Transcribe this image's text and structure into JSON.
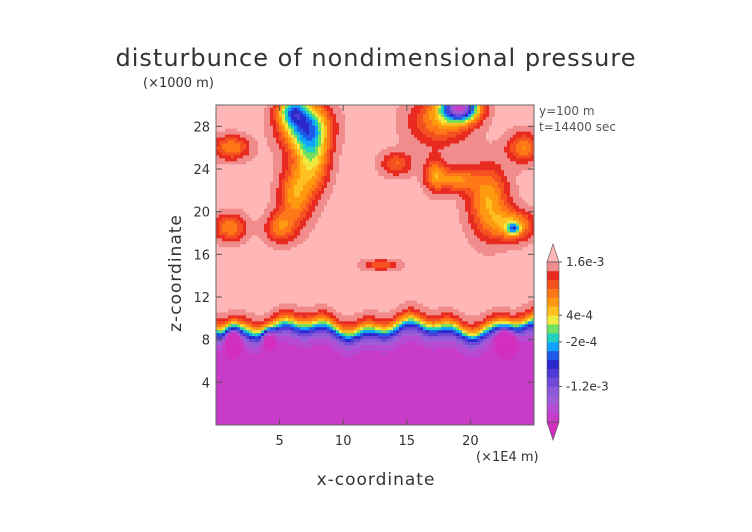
{
  "title": "disturbunce of nondimensional pressure",
  "info": {
    "y_label": "y=100 m",
    "t_label": "t=14400 sec"
  },
  "chart_data": {
    "type": "heatmap",
    "title": "disturbunce of nondimensional pressure",
    "xlabel": "x-coordinate",
    "ylabel": "z-coordinate",
    "x_unit": "(×1E4 m)",
    "z_unit": "(×1000 m)",
    "xlim": [
      0,
      25
    ],
    "ylim": [
      0,
      30
    ],
    "x_ticks": [
      5,
      10,
      15,
      20
    ],
    "y_ticks": [
      4,
      8,
      12,
      16,
      20,
      24,
      28
    ],
    "colorbar": {
      "labels": [
        {
          "value": 0.0016,
          "text": "1.6e-3"
        },
        {
          "value": 0.0004,
          "text": "4e-4"
        },
        {
          "value": -0.0002,
          "text": "-2e-4"
        },
        {
          "value": -0.0012,
          "text": "-1.2e-3"
        }
      ],
      "levels": [
        -0.002,
        -0.0018,
        -0.0016,
        -0.0014,
        -0.0012,
        -0.001,
        -0.0008,
        -0.0006,
        -0.0004,
        -0.0002,
        0,
        0.0002,
        0.0004,
        0.0006,
        0.0008,
        0.001,
        0.0012,
        0.0014,
        0.0016
      ],
      "colors": [
        "#d22fbe",
        "#c83ac8",
        "#b64ad2",
        "#a05ad8",
        "#8a5ad8",
        "#6f4ad8",
        "#4f3ad4",
        "#2c28d0",
        "#1e5ae8",
        "#10a0ff",
        "#20d0c0",
        "#70e060",
        "#f0ea40",
        "#ffc020",
        "#ff9a10",
        "#ff7818",
        "#f45020",
        "#e82a20",
        "#f08c8c",
        "#ffb6b6"
      ]
    },
    "layers": {
      "upper_background": 0.0017,
      "lower_background": -0.0019,
      "transition_z": 9,
      "transition_width": 1.2
    },
    "anomalies": [
      {
        "x": 7,
        "z": 28,
        "sx": 1.3,
        "sz": 1.6,
        "amp": -0.0018
      },
      {
        "x": 6,
        "z": 29.5,
        "sx": 0.8,
        "sz": 1.0,
        "amp": -0.0014
      },
      {
        "x": 7.6,
        "z": 25,
        "sx": 0.9,
        "sz": 2.2,
        "amp": -0.0012
      },
      {
        "x": 6.2,
        "z": 21.5,
        "sx": 0.9,
        "sz": 2.0,
        "amp": -0.001
      },
      {
        "x": 5,
        "z": 18.5,
        "sx": 0.8,
        "sz": 1.0,
        "amp": -0.0008
      },
      {
        "x": 1.2,
        "z": 26,
        "sx": 1.0,
        "sz": 0.8,
        "amp": -0.0009
      },
      {
        "x": 1.1,
        "z": 18.5,
        "sx": 0.9,
        "sz": 0.9,
        "amp": -0.0009
      },
      {
        "x": 13,
        "z": 15,
        "sx": 1.0,
        "sz": 0.35,
        "amp": -0.0007
      },
      {
        "x": 17.6,
        "z": 28.5,
        "sx": 1.7,
        "sz": 1.6,
        "amp": -0.0009
      },
      {
        "x": 19.2,
        "z": 29.8,
        "sx": 1.0,
        "sz": 0.9,
        "amp": -0.0032
      },
      {
        "x": 14.2,
        "z": 24.5,
        "sx": 0.9,
        "sz": 0.8,
        "amp": -0.0007
      },
      {
        "x": 17.2,
        "z": 23.5,
        "sx": 0.6,
        "sz": 1.1,
        "amp": -0.0009
      },
      {
        "x": 18.9,
        "z": 23,
        "sx": 1.0,
        "sz": 0.8,
        "amp": -0.0009
      },
      {
        "x": 21.4,
        "z": 21,
        "sx": 1.1,
        "sz": 2.3,
        "amp": -0.0011
      },
      {
        "x": 23.4,
        "z": 18.7,
        "sx": 1.1,
        "sz": 1.0,
        "amp": -0.0011
      },
      {
        "x": 23.4,
        "z": 18.4,
        "sx": 0.35,
        "sz": 0.35,
        "amp": -0.0012
      },
      {
        "x": 24.2,
        "z": 26,
        "sx": 0.9,
        "sz": 1.0,
        "amp": -0.0009
      },
      {
        "x": 1.3,
        "z": 8.2,
        "sx": 0.45,
        "sz": 0.9,
        "amp": -0.0017
      },
      {
        "x": 4.1,
        "z": 8.2,
        "sx": 0.4,
        "sz": 0.7,
        "amp": -0.0013
      },
      {
        "x": 22.8,
        "z": 8.2,
        "sx": 0.55,
        "sz": 0.9,
        "amp": -0.0016
      }
    ]
  }
}
